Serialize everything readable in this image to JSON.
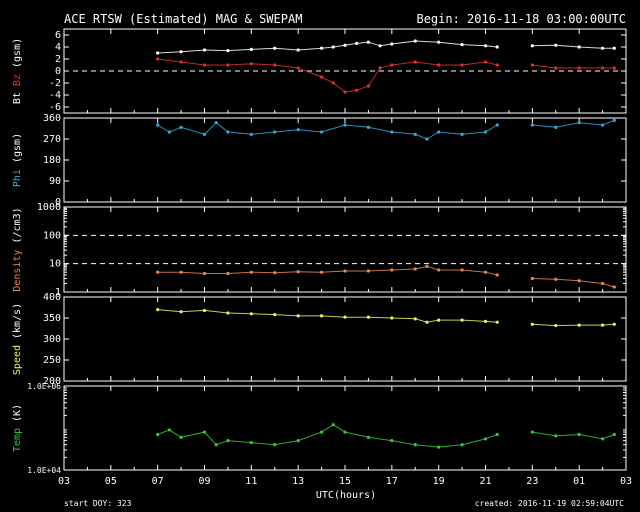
{
  "title": "ACE RTSW (Estimated) MAG & SWEPAM",
  "begin_label": "Begin: 2016-11-18 03:00:00UTC",
  "footer": {
    "start_doy": "start DOY: 323",
    "xlabel": "UTC(hours)",
    "created": "created: 2016-11-19 02:59:04UTC"
  },
  "colors": {
    "bt": "#ffffff",
    "bz": "#e03030",
    "phi": "#33aadd",
    "density": "#e8884a",
    "speed": "#f0f060",
    "temp": "#33cc33",
    "axes": "#ffffff",
    "background": "#000000"
  },
  "chart_data": [
    {
      "type": "scatter",
      "panel": "mag",
      "ylabel_parts": [
        "Bt",
        "Bz",
        "(gsm)"
      ],
      "ylim": [
        -7,
        7
      ],
      "yticks": [
        "6",
        "4",
        "2",
        "0",
        "-2",
        "-4",
        "-6"
      ],
      "ytick_values": [
        6,
        4,
        2,
        0,
        -2,
        -4,
        -6
      ],
      "reference_line": 0,
      "x_hours": [
        7.0,
        8.0,
        9.0,
        10.0,
        11.0,
        12.0,
        13.0,
        14.0,
        14.5,
        15.0,
        15.5,
        16.0,
        16.5,
        17.0,
        18.0,
        19.0,
        20.0,
        21.0,
        21.5,
        23.0,
        24.0,
        25.0,
        26.0,
        26.5
      ],
      "series": [
        {
          "name": "Bt",
          "color_key": "bt",
          "values": [
            3.0,
            3.2,
            3.5,
            3.4,
            3.6,
            3.8,
            3.5,
            3.8,
            4.0,
            4.3,
            4.6,
            4.8,
            4.2,
            4.5,
            5.0,
            4.8,
            4.4,
            4.2,
            4.0,
            4.2,
            4.3,
            4.0,
            3.8,
            3.8
          ]
        },
        {
          "name": "Bz",
          "color_key": "bz",
          "values": [
            2.0,
            1.5,
            1.0,
            1.0,
            1.2,
            1.0,
            0.5,
            -1.0,
            -2.0,
            -3.5,
            -3.2,
            -2.5,
            0.5,
            1.0,
            1.5,
            1.0,
            1.0,
            1.5,
            1.0,
            1.0,
            0.5,
            0.5,
            0.5,
            0.5
          ]
        }
      ]
    },
    {
      "type": "scatter",
      "panel": "phi",
      "ylabel_parts": [
        "Phi",
        "(gsm)"
      ],
      "ylim": [
        0,
        360
      ],
      "yticks": [
        "360",
        "270",
        "180",
        "90",
        "0"
      ],
      "ytick_values": [
        360,
        270,
        180,
        90,
        0
      ],
      "x_hours": [
        7.0,
        7.5,
        8.0,
        9.0,
        9.5,
        10.0,
        11.0,
        12.0,
        13.0,
        14.0,
        15.0,
        16.0,
        17.0,
        18.0,
        18.5,
        19.0,
        20.0,
        21.0,
        21.5,
        23.0,
        24.0,
        25.0,
        26.0,
        26.5
      ],
      "series": [
        {
          "name": "Phi",
          "color_key": "phi",
          "values": [
            330,
            300,
            320,
            290,
            340,
            300,
            290,
            300,
            310,
            300,
            330,
            320,
            300,
            290,
            270,
            300,
            290,
            300,
            330,
            330,
            320,
            340,
            330,
            350
          ]
        }
      ]
    },
    {
      "type": "scatter",
      "panel": "density",
      "ylabel_parts": [
        "Density",
        "(/cm3)"
      ],
      "yscale": "log",
      "ylim": [
        1,
        1000
      ],
      "yticks": [
        "1000",
        "100",
        "10",
        "1"
      ],
      "ytick_values": [
        1000,
        100,
        10,
        1
      ],
      "reference_lines": [
        100,
        10
      ],
      "x_hours": [
        7.0,
        8.0,
        9.0,
        10.0,
        11.0,
        12.0,
        13.0,
        14.0,
        15.0,
        16.0,
        17.0,
        18.0,
        18.5,
        19.0,
        20.0,
        21.0,
        21.5,
        23.0,
        24.0,
        25.0,
        26.0,
        26.5
      ],
      "series": [
        {
          "name": "Density",
          "color_key": "density",
          "values": [
            5.0,
            5.0,
            4.5,
            4.5,
            5.0,
            4.8,
            5.2,
            5.0,
            5.5,
            5.5,
            6.0,
            6.5,
            8.0,
            6.0,
            6.0,
            5.0,
            4.0,
            3.0,
            2.8,
            2.5,
            2.0,
            1.5
          ]
        }
      ]
    },
    {
      "type": "scatter",
      "panel": "speed",
      "ylabel_parts": [
        "Speed",
        "(km/s)"
      ],
      "ylim": [
        200,
        400
      ],
      "yticks": [
        "400",
        "350",
        "300",
        "250",
        "200"
      ],
      "ytick_values": [
        400,
        350,
        300,
        250,
        200
      ],
      "x_hours": [
        7.0,
        8.0,
        9.0,
        10.0,
        11.0,
        12.0,
        13.0,
        14.0,
        15.0,
        16.0,
        17.0,
        18.0,
        18.5,
        19.0,
        20.0,
        21.0,
        21.5,
        23.0,
        24.0,
        25.0,
        26.0,
        26.5
      ],
      "series": [
        {
          "name": "Speed",
          "color_key": "speed",
          "values": [
            370,
            365,
            368,
            362,
            360,
            358,
            355,
            355,
            352,
            352,
            350,
            348,
            340,
            345,
            345,
            342,
            340,
            335,
            332,
            333,
            333,
            335
          ]
        }
      ]
    },
    {
      "type": "scatter",
      "panel": "temp",
      "ylabel_parts": [
        "Temp",
        "(K)"
      ],
      "yscale": "log",
      "ylim": [
        10000,
        1000000
      ],
      "yticks": [
        "1.0E+06",
        "1.0E+04"
      ],
      "ytick_values": [
        1000000,
        10000
      ],
      "x_hours": [
        7.0,
        7.5,
        8.0,
        9.0,
        9.5,
        10.0,
        11.0,
        12.0,
        13.0,
        14.0,
        14.5,
        15.0,
        16.0,
        17.0,
        18.0,
        19.0,
        20.0,
        21.0,
        21.5,
        23.0,
        24.0,
        25.0,
        26.0,
        26.5
      ],
      "series": [
        {
          "name": "Temp",
          "color_key": "temp",
          "values": [
            70000,
            90000,
            60000,
            80000,
            40000,
            50000,
            45000,
            40000,
            50000,
            80000,
            120000,
            80000,
            60000,
            50000,
            40000,
            35000,
            40000,
            55000,
            70000,
            80000,
            65000,
            70000,
            55000,
            70000
          ]
        }
      ]
    }
  ],
  "xaxis": {
    "ticks": [
      "03",
      "05",
      "07",
      "09",
      "11",
      "13",
      "15",
      "17",
      "19",
      "21",
      "23",
      "01",
      "03"
    ],
    "tick_hours": [
      3,
      5,
      7,
      9,
      11,
      13,
      15,
      17,
      19,
      21,
      23,
      25,
      27
    ],
    "range": [
      3,
      27
    ]
  }
}
